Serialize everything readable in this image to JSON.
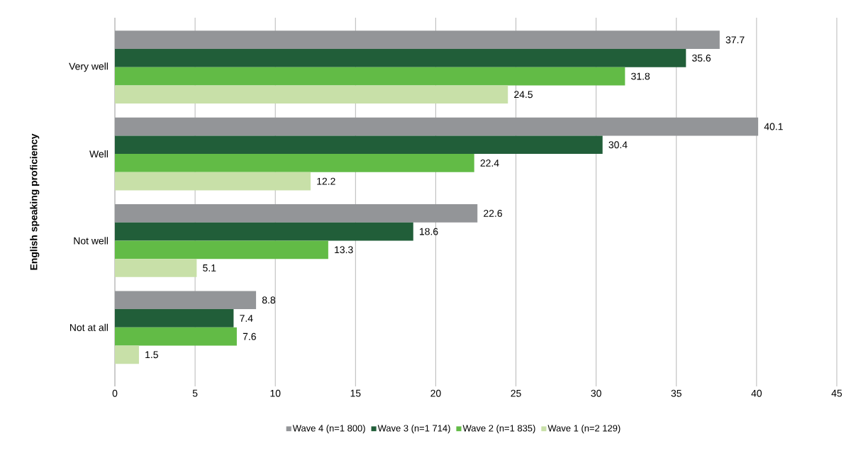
{
  "chart_data": {
    "type": "bar",
    "orientation": "horizontal",
    "ylabel": "English speaking proficiency",
    "categories": [
      "Very well",
      "Well",
      "Not well",
      "Not at all"
    ],
    "series": [
      {
        "name": "Wave 4 (n=1 800)",
        "color": "#939598",
        "values": [
          37.7,
          40.1,
          22.6,
          8.8
        ]
      },
      {
        "name": "Wave 3 (n=1 714)",
        "color": "#215e39",
        "values": [
          35.6,
          30.4,
          18.6,
          7.4
        ]
      },
      {
        "name": "Wave 2 (n=1 835)",
        "color": "#62bb46",
        "values": [
          31.8,
          22.4,
          13.3,
          7.6
        ]
      },
      {
        "name": "Wave 1 (n=2 129)",
        "color": "#c8e0a8",
        "values": [
          24.5,
          12.2,
          5.1,
          1.5
        ]
      }
    ],
    "xlim": [
      0,
      45
    ],
    "xticks": [
      0,
      5,
      10,
      15,
      20,
      25,
      30,
      35,
      40,
      45
    ],
    "grid": "x",
    "legend": "bottom",
    "data_labels": true
  }
}
